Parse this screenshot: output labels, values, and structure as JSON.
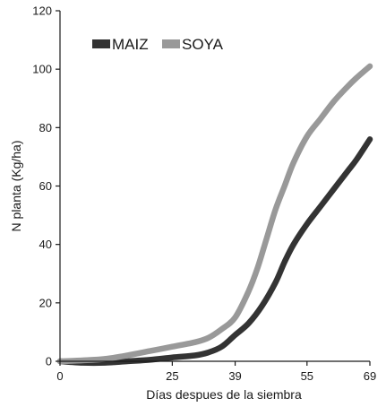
{
  "chart_data": {
    "type": "line",
    "title": "",
    "xlabel": "Días despues de la siembra",
    "ylabel": "N planta (Kg/ha)",
    "x_ticks": [
      0,
      25,
      39,
      55,
      69
    ],
    "x_tick_labels": [
      "0",
      "25",
      "39",
      "55",
      "69"
    ],
    "xlim": [
      0,
      69
    ],
    "y_ticks": [
      0,
      20,
      40,
      60,
      80,
      100,
      120
    ],
    "ylim": [
      0,
      120
    ],
    "grid": false,
    "legend_placement": "top-left",
    "series": [
      {
        "name": "MAIZ",
        "color": "#333333",
        "x": [
          0,
          5,
          10,
          15,
          20,
          25,
          30,
          33,
          36,
          39,
          42,
          45,
          48,
          50,
          52,
          55,
          58,
          61,
          64,
          66,
          69
        ],
        "y": [
          0,
          -0.5,
          -0.5,
          0,
          0.5,
          1.3,
          2,
          3,
          5,
          9,
          13,
          19,
          27,
          34,
          40,
          47,
          53,
          59,
          65,
          69,
          76
        ]
      },
      {
        "name": "SOYA",
        "color": "#999999",
        "x": [
          0,
          5,
          10,
          15,
          20,
          25,
          30,
          33,
          36,
          39,
          42,
          44,
          46,
          48,
          50,
          52,
          55,
          58,
          61,
          64,
          66,
          69
        ],
        "y": [
          0,
          0.3,
          0.8,
          2,
          3.5,
          5,
          6.5,
          8,
          11,
          15,
          24,
          32,
          42,
          52,
          60,
          68,
          77,
          83,
          89,
          94,
          97,
          101
        ]
      }
    ]
  }
}
